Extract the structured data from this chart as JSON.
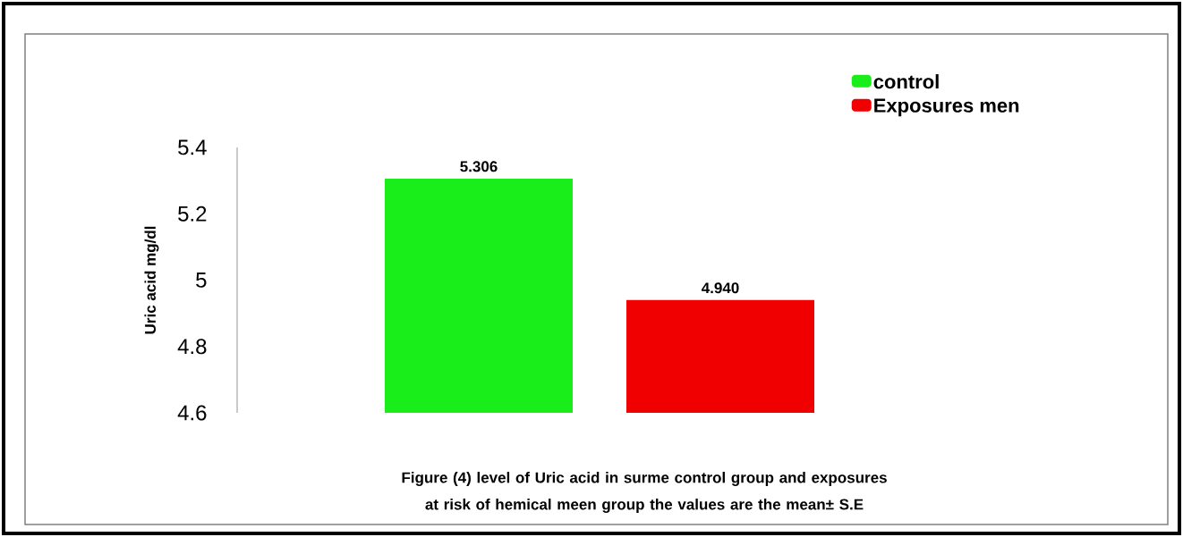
{
  "chart_data": {
    "type": "bar",
    "categories": [
      null
    ],
    "series": [
      {
        "name": "control",
        "color": "#1aee1a",
        "values": [
          5.306
        ],
        "value_labels": [
          "5.306"
        ]
      },
      {
        "name": "Exposures men",
        "color": "#f00000",
        "values": [
          4.94
        ],
        "value_labels": [
          "4.940"
        ]
      }
    ],
    "ylabel": "Uric acid  mg/dl",
    "ylim": [
      4.6,
      5.4
    ],
    "yticks": [
      4.6,
      4.8,
      5,
      5.2,
      5.4
    ],
    "legend": "top right",
    "annotations": [
      "Figure (4)  level of Uric acid  in surme control group and exposures at risk of  hemical meen group the values are the mean± S.E"
    ]
  }
}
